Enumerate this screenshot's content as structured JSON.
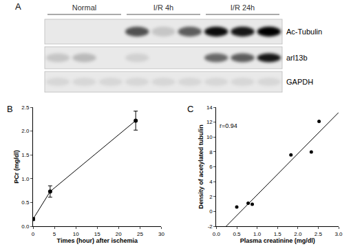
{
  "blot": {
    "panel": "A",
    "groups": [
      {
        "label": "Normal",
        "lanes": 3
      },
      {
        "label": "I/R 4h",
        "lanes": 3
      },
      {
        "label": "I/R 24h",
        "lanes": 3
      }
    ],
    "rows": [
      {
        "label": "Ac-Tubulin",
        "intensity": [
          0,
          0,
          0,
          0.65,
          0.15,
          0.6,
          0.95,
          0.9,
          1.0
        ]
      },
      {
        "label": "arl13b",
        "intensity": [
          0.15,
          0.2,
          0,
          0.1,
          0,
          0,
          0.55,
          0.6,
          0.9
        ]
      },
      {
        "label": "GAPDH",
        "intensity": [
          0.08,
          0.08,
          0.08,
          0.08,
          0.08,
          0.08,
          0.08,
          0.08,
          0.08
        ]
      }
    ]
  },
  "chart_data": [
    {
      "panel": "B",
      "type": "line",
      "x": [
        0,
        4,
        24
      ],
      "values": [
        0.15,
        0.73,
        2.22
      ],
      "errors": [
        0.03,
        0.12,
        0.2
      ],
      "x_label": "Times (hour) after ischemia",
      "y_label": "PCr (mg/dl)",
      "xlim": [
        0,
        30
      ],
      "xticks": [
        0,
        5,
        10,
        15,
        20,
        25,
        30
      ],
      "ylim": [
        0,
        2.5
      ],
      "yticks": [
        {
          "value": 0,
          "label": "0.0"
        },
        0.5,
        {
          "value": 1,
          "label": "1.0"
        },
        1.5,
        {
          "value": 2,
          "label": "2.0"
        },
        2.5
      ],
      "color": "#000000",
      "marker": "circle"
    },
    {
      "panel": "C",
      "type": "scatter",
      "x": [
        0.5,
        0.78,
        0.88,
        1.83,
        2.33,
        2.52
      ],
      "values": [
        0.6,
        1.1,
        0.95,
        7.6,
        8.0,
        12.1
      ],
      "fit_line": {
        "x": [
          0.24,
          3.0
        ],
        "y": [
          -2,
          13.3
        ]
      },
      "annotation": "r=0.94",
      "annotation_at": {
        "x": 0.05,
        "y": 11.5
      },
      "x_label": "Plasma creatinine (mg/dl)",
      "y_label": "Density of acetylated tubulin",
      "xlim": [
        0,
        3
      ],
      "xticks": [
        {
          "value": 0,
          "label": "0.0"
        },
        0.5,
        {
          "value": 1,
          "label": "1.0"
        },
        1.5,
        {
          "value": 2,
          "label": "2.0"
        },
        2.5,
        {
          "value": 3,
          "label": "3.0"
        }
      ],
      "ylim": [
        -2,
        14
      ],
      "yticks": [
        -2,
        0,
        2,
        4,
        6,
        8,
        10,
        12,
        14
      ],
      "color": "#000000",
      "marker": "circle"
    }
  ]
}
